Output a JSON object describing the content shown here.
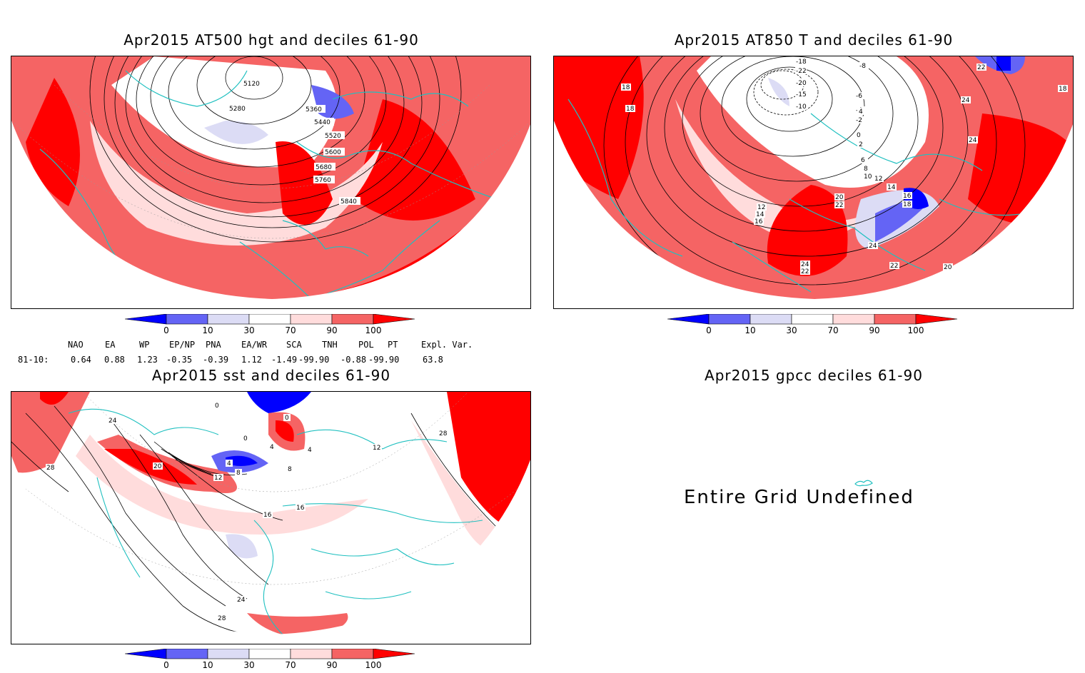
{
  "panels": {
    "hgt": {
      "title": "Apr2015 AT500 hgt and deciles 61-90",
      "contour_labels": [
        "5120",
        "5280",
        "5360",
        "5440",
        "5520",
        "5600",
        "5680",
        "5760",
        "5840"
      ]
    },
    "t850": {
      "title": "Apr2015 AT850 T and deciles 61-90",
      "contour_labels": [
        "-18",
        "-22",
        "-20",
        "-15",
        "-10",
        "-8",
        "-6",
        "-4",
        "-2",
        "0",
        "2",
        "4",
        "6",
        "8",
        "10",
        "12",
        "14",
        "16",
        "18",
        "20",
        "22",
        "24",
        "24",
        "22",
        "22",
        "20",
        "18",
        "18",
        "24",
        "24",
        "22",
        "18",
        "16",
        "14",
        "12"
      ]
    },
    "sst": {
      "title": "Apr2015 sst and deciles 61-90",
      "contour_labels": [
        "24",
        "28",
        "20",
        "0",
        "0",
        "4",
        "4",
        "8",
        "12",
        "16",
        "16",
        "24",
        "28",
        "4",
        "8",
        "12",
        "28",
        "0"
      ]
    },
    "gpcc": {
      "title": "Apr2015 gpcc deciles 61-90",
      "message": "Entire Grid Undefined"
    }
  },
  "colorbar": {
    "ticks": [
      "0",
      "10",
      "30",
      "70",
      "90",
      "100"
    ],
    "colors": [
      "#0000ff",
      "#6464f5",
      "#dcdcf5",
      "#ffffff",
      "#ffdcdc",
      "#f56464",
      "#ff0000"
    ]
  },
  "indices": {
    "headers": [
      "NAO",
      "EA",
      "WP",
      "EP/NP",
      "PNA",
      "EA/WR",
      "SCA",
      "TNH",
      "POL",
      "PT",
      "Expl. Var."
    ],
    "row_label": "81-10:",
    "values": [
      "0.64",
      "0.88",
      "1.23",
      "-0.35",
      "-0.39",
      "1.12",
      "-1.49",
      "-99.90",
      "-0.88",
      "-99.90",
      "63.8"
    ]
  }
}
